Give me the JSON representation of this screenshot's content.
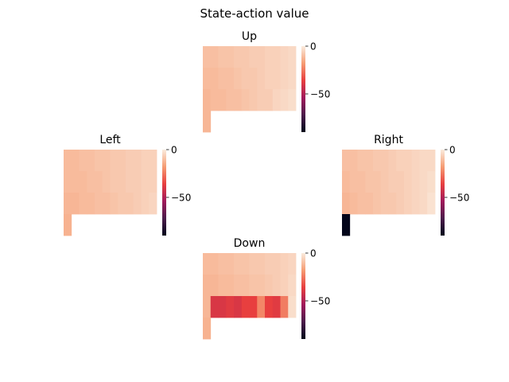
{
  "chart_data": {
    "type": "heatmap",
    "title": "State-action value",
    "colormap": "rocket",
    "cell_size_note": "12 columns x 4 rows per panel (cliff-walking grid)",
    "panels": [
      {
        "name": "Up",
        "vmin": -90,
        "vmax": 0,
        "colorbar_ticks": [
          0,
          -50
        ],
        "values": [
          [
            -10,
            -10,
            -9,
            -9,
            -8,
            -8,
            -7,
            -7,
            -6,
            -6,
            -5,
            -4
          ],
          [
            -11,
            -11,
            -10,
            -10,
            -9,
            -8,
            -8,
            -7,
            -6,
            -6,
            -5,
            -4
          ],
          [
            -12,
            -11,
            -11,
            -10,
            -10,
            -9,
            -8,
            -7,
            -7,
            -5,
            -4,
            -3
          ],
          [
            -12,
            null,
            null,
            null,
            null,
            null,
            null,
            null,
            null,
            null,
            null,
            null
          ]
        ]
      },
      {
        "name": "Left",
        "vmin": -90,
        "vmax": 0,
        "colorbar_ticks": [
          0,
          -50
        ],
        "values": [
          [
            -11,
            -11,
            -10,
            -10,
            -9,
            -9,
            -8,
            -8,
            -7,
            -7,
            -6,
            -6
          ],
          [
            -11,
            -11,
            -11,
            -10,
            -10,
            -9,
            -8,
            -8,
            -7,
            -7,
            -6,
            -6
          ],
          [
            -12,
            -12,
            -11,
            -11,
            -10,
            -10,
            -9,
            -8,
            -8,
            -7,
            -6,
            -5
          ],
          [
            -13,
            null,
            null,
            null,
            null,
            null,
            null,
            null,
            null,
            null,
            null,
            null
          ]
        ]
      },
      {
        "name": "Right",
        "vmin": -90,
        "vmax": 0,
        "colorbar_ticks": [
          0,
          -50
        ],
        "values": [
          [
            -10,
            -10,
            -9,
            -9,
            -8,
            -8,
            -7,
            -6,
            -6,
            -5,
            -4,
            -4
          ],
          [
            -11,
            -10,
            -10,
            -9,
            -9,
            -8,
            -7,
            -7,
            -6,
            -5,
            -4,
            -3
          ],
          [
            -12,
            -11,
            -10,
            -10,
            -9,
            -8,
            -8,
            -7,
            -6,
            -5,
            -4,
            -2
          ],
          [
            -90,
            null,
            null,
            null,
            null,
            null,
            null,
            null,
            null,
            null,
            null,
            null
          ]
        ]
      },
      {
        "name": "Down",
        "vmin": -90,
        "vmax": 0,
        "colorbar_ticks": [
          0,
          -50
        ],
        "values": [
          [
            -11,
            -11,
            -10,
            -10,
            -9,
            -9,
            -8,
            -8,
            -7,
            -7,
            -6,
            -5
          ],
          [
            -12,
            -12,
            -11,
            -11,
            -10,
            -10,
            -9,
            -9,
            -8,
            -7,
            -6,
            -4
          ],
          [
            -12,
            -40,
            -40,
            -38,
            -40,
            -36,
            -36,
            -22,
            -36,
            -38,
            -24,
            -3
          ],
          [
            -13,
            null,
            null,
            null,
            null,
            null,
            null,
            null,
            null,
            null,
            null,
            null
          ]
        ]
      }
    ]
  }
}
